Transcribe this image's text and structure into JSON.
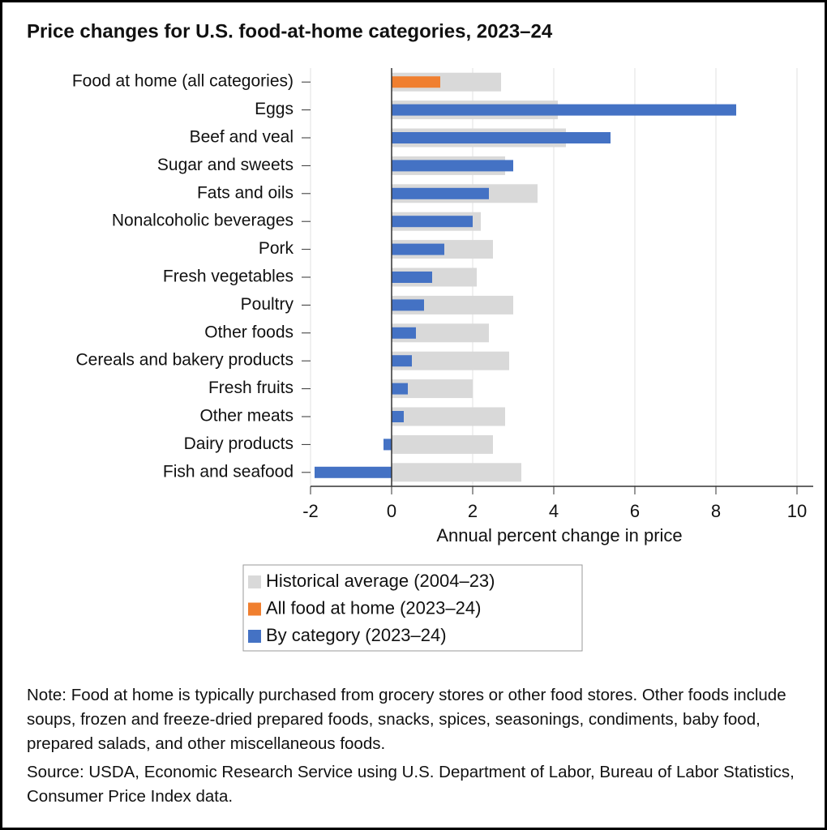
{
  "chart_data": {
    "type": "bar",
    "orientation": "horizontal",
    "title": "Price changes for U.S. food-at-home categories, 2023–24",
    "x_label": "Annual percent change in price",
    "categories": [
      "Food at home (all categories)",
      "Eggs",
      "Beef and veal",
      "Sugar and sweets",
      "Fats and oils",
      "Nonalcoholic beverages",
      "Pork",
      "Fresh vegetables",
      "Poultry",
      "Other foods",
      "Cereals and bakery products",
      "Fresh fruits",
      "Other meats",
      "Dairy products",
      "Fish and seafood"
    ],
    "series": [
      {
        "name": "Historical average (2004–23)",
        "color": "#d9d9d9",
        "values": [
          2.7,
          4.1,
          4.3,
          2.8,
          3.6,
          2.2,
          2.5,
          2.1,
          3.0,
          2.4,
          2.9,
          2.0,
          2.8,
          2.5,
          3.2
        ]
      },
      {
        "name": "All food at home (2023–24)",
        "color": "#f07f2f",
        "values": [
          1.2,
          null,
          null,
          null,
          null,
          null,
          null,
          null,
          null,
          null,
          null,
          null,
          null,
          null,
          null
        ]
      },
      {
        "name": "By category (2023–24)",
        "color": "#4472c4",
        "values": [
          null,
          8.5,
          5.4,
          3.0,
          2.4,
          2.0,
          1.3,
          1.0,
          0.8,
          0.6,
          0.5,
          0.4,
          0.3,
          -0.2,
          -1.9
        ]
      }
    ],
    "xlim": [
      -2,
      10.4
    ],
    "xticks": [
      -2,
      0,
      2,
      4,
      6,
      8,
      10
    ],
    "grid": true,
    "note": "Note: Food at home is typically purchased from grocery stores or other food stores. Other foods include soups, frozen and freeze-dried prepared foods, snacks, spices, seasonings, condiments, baby food, prepared salads, and other miscellaneous foods.",
    "source": "Source: USDA, Economic Research Service using U.S. Department of Labor, Bureau of Labor Statistics, Consumer Price Index data."
  }
}
